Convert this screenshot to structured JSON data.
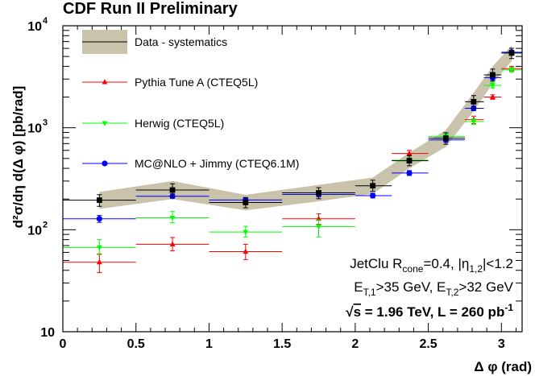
{
  "chart_data": {
    "type": "scatter",
    "title": "CDF Run II Preliminary",
    "xlabel": "Δ φ (rad)",
    "ylabel": "d²σ/dη d(Δ φ) [pb/rad]",
    "xlim": [
      0,
      3.1416
    ],
    "ylim": [
      10,
      10000
    ],
    "yscale": "log",
    "grid": false,
    "legend_position": "top-left",
    "x_ticks": [
      "0",
      "0.5",
      "1",
      "1.5",
      "2",
      "2.5",
      "3"
    ],
    "x_tick_values": [
      0,
      0.5,
      1,
      1.5,
      2,
      2.5,
      3
    ],
    "y_ticks": [
      {
        "base": "10",
        "exp": "",
        "value": 10
      },
      {
        "base": "10",
        "exp": "2",
        "value": 100
      },
      {
        "base": "10",
        "exp": "3",
        "value": 1000
      },
      {
        "base": "10",
        "exp": "4",
        "value": 10000
      }
    ],
    "annotations": {
      "line1": "JetClu R",
      "line1_sub": "cone",
      "line1_rest": "=0.4, |η",
      "line1_sub2": "1,2",
      "line1_end": "|<1.2",
      "line2_a": "E",
      "line2_sub_a": "T,1",
      "line2_b": ">35 GeV, E",
      "line2_sub_b": "T,2",
      "line2_c": ">32 GeV",
      "line3_root": "s",
      "line3_rest": " = 1.96 TeV, L = 260 pb",
      "line3_sup": "-1"
    },
    "series": [
      {
        "name": "Data - systematics",
        "color": "#000000",
        "band_color": "#c8c3aa",
        "marker": "square",
        "points": [
          {
            "x": 0.25,
            "y": 195,
            "xlo": 0.0,
            "xhi": 0.5,
            "band_lo": 160,
            "band_hi": 235
          },
          {
            "x": 0.75,
            "y": 245,
            "xlo": 0.5,
            "xhi": 1.0,
            "band_lo": 200,
            "band_hi": 300
          },
          {
            "x": 1.25,
            "y": 185,
            "xlo": 1.0,
            "xhi": 1.5,
            "band_lo": 155,
            "band_hi": 220
          },
          {
            "x": 1.75,
            "y": 230,
            "xlo": 1.5,
            "xhi": 2.0,
            "band_lo": 190,
            "band_hi": 275
          },
          {
            "x": 2.12,
            "y": 270,
            "xlo": 2.0,
            "xhi": 2.25,
            "band_lo": 225,
            "band_hi": 325
          },
          {
            "x": 2.37,
            "y": 475,
            "xlo": 2.25,
            "xhi": 2.5,
            "band_lo": 400,
            "band_hi": 570
          },
          {
            "x": 2.62,
            "y": 790,
            "xlo": 2.5,
            "xhi": 2.75,
            "band_lo": 650,
            "band_hi": 950
          },
          {
            "x": 2.81,
            "y": 1800,
            "xlo": 2.75,
            "xhi": 2.88,
            "band_lo": 1450,
            "band_hi": 2200
          },
          {
            "x": 2.94,
            "y": 3300,
            "xlo": 2.88,
            "xhi": 3.0,
            "band_lo": 2700,
            "band_hi": 4000
          },
          {
            "x": 3.07,
            "y": 5400,
            "xlo": 3.0,
            "xhi": 3.1416,
            "band_lo": 4500,
            "band_hi": 6400
          }
        ]
      },
      {
        "name": "Pythia Tune A (CTEQ5L)",
        "color": "#ff0000",
        "marker": "triangle-up",
        "points": [
          {
            "x": 0.25,
            "y": 48,
            "xlo": 0.0,
            "xhi": 0.5,
            "ylo": 38,
            "yhi": 58
          },
          {
            "x": 0.75,
            "y": 72,
            "xlo": 0.5,
            "xhi": 1.0,
            "ylo": 62,
            "yhi": 84
          },
          {
            "x": 1.25,
            "y": 61,
            "xlo": 1.0,
            "xhi": 1.5,
            "ylo": 51,
            "yhi": 72
          },
          {
            "x": 1.75,
            "y": 128,
            "xlo": 1.5,
            "xhi": 2.0,
            "ylo": 113,
            "yhi": 143
          },
          {
            "x": 2.37,
            "y": 560,
            "xlo": 2.25,
            "xhi": 2.5,
            "ylo": 530,
            "yhi": 600
          },
          {
            "x": 2.81,
            "y": 1200,
            "xlo": 2.75,
            "xhi": 2.88,
            "ylo": 1100,
            "yhi": 1300
          },
          {
            "x": 2.94,
            "y": 2000,
            "xlo": 2.88,
            "xhi": 3.0,
            "ylo": 1900,
            "yhi": 2100
          },
          {
            "x": 3.07,
            "y": 3800,
            "xlo": 3.0,
            "xhi": 3.1416,
            "ylo": 3600,
            "yhi": 4000
          }
        ]
      },
      {
        "name": "Herwig (CTEQ5L)",
        "color": "#00ff00",
        "marker": "triangle-down",
        "points": [
          {
            "x": 0.25,
            "y": 67,
            "xlo": 0.0,
            "xhi": 0.5,
            "ylo": 57,
            "yhi": 80
          },
          {
            "x": 0.75,
            "y": 131,
            "xlo": 0.5,
            "xhi": 1.0,
            "ylo": 117,
            "yhi": 151
          },
          {
            "x": 1.25,
            "y": 95,
            "xlo": 1.0,
            "xhi": 1.5,
            "ylo": 85,
            "yhi": 108
          },
          {
            "x": 1.75,
            "y": 107,
            "xlo": 1.5,
            "xhi": 2.0,
            "ylo": 85,
            "yhi": 125
          },
          {
            "x": 2.37,
            "y": 480,
            "xlo": 2.25,
            "xhi": 2.5,
            "ylo": 455,
            "yhi": 510
          },
          {
            "x": 2.62,
            "y": 820,
            "xlo": 2.5,
            "xhi": 2.75,
            "ylo": 780,
            "yhi": 870
          },
          {
            "x": 2.81,
            "y": 1150,
            "xlo": 2.75,
            "xhi": 2.88,
            "ylo": 1080,
            "yhi": 1220
          },
          {
            "x": 2.94,
            "y": 2600,
            "xlo": 2.88,
            "xhi": 3.0,
            "ylo": 2450,
            "yhi": 2750
          },
          {
            "x": 3.07,
            "y": 3700,
            "xlo": 3.0,
            "xhi": 3.1416,
            "ylo": 3500,
            "yhi": 3900
          }
        ]
      },
      {
        "name": "MC@NLO + Jimmy (CTEQ6.1M)",
        "color": "#0000ff",
        "marker": "circle",
        "points": [
          {
            "x": 0.25,
            "y": 128,
            "xlo": 0.0,
            "xhi": 0.5,
            "ylo": 118,
            "yhi": 138
          },
          {
            "x": 0.75,
            "y": 213,
            "xlo": 0.5,
            "xhi": 1.0,
            "ylo": 203,
            "yhi": 225
          },
          {
            "x": 1.25,
            "y": 196,
            "xlo": 1.0,
            "xhi": 1.5,
            "ylo": 186,
            "yhi": 206
          },
          {
            "x": 1.75,
            "y": 222,
            "xlo": 1.5,
            "xhi": 2.0,
            "ylo": 210,
            "yhi": 234
          },
          {
            "x": 2.12,
            "y": 216,
            "xlo": 2.0,
            "xhi": 2.25,
            "ylo": 205,
            "yhi": 228
          },
          {
            "x": 2.37,
            "y": 360,
            "xlo": 2.25,
            "xhi": 2.5,
            "ylo": 340,
            "yhi": 380
          },
          {
            "x": 2.62,
            "y": 760,
            "xlo": 2.5,
            "xhi": 2.75,
            "ylo": 720,
            "yhi": 800
          },
          {
            "x": 2.81,
            "y": 1550,
            "xlo": 2.75,
            "xhi": 2.88,
            "ylo": 1470,
            "yhi": 1630
          },
          {
            "x": 2.94,
            "y": 3100,
            "xlo": 2.88,
            "xhi": 3.0,
            "ylo": 2950,
            "yhi": 3250
          },
          {
            "x": 3.07,
            "y": 5500,
            "xlo": 3.0,
            "xhi": 3.1416,
            "ylo": 5250,
            "yhi": 5750
          }
        ]
      }
    ]
  }
}
